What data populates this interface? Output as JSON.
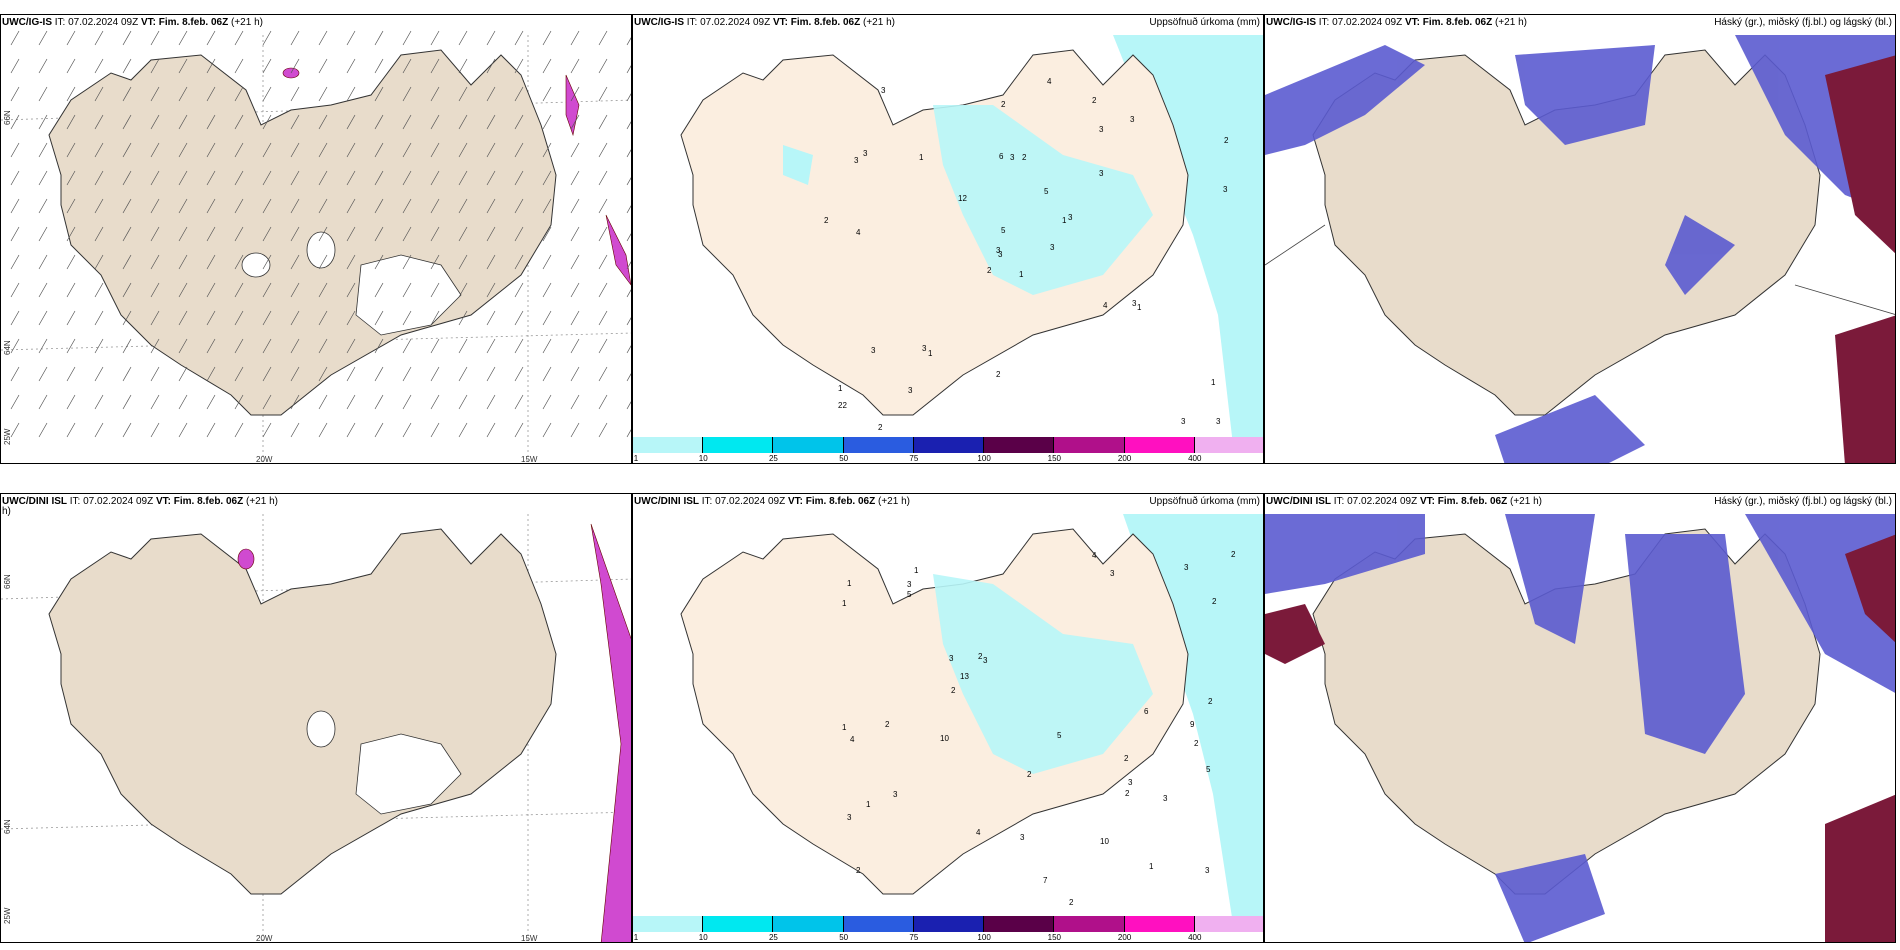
{
  "colors": {
    "land": "#e8dccb",
    "land_light": "#fbeee0",
    "precip_light": "#b7f6f8",
    "precip_mid": "#60e7ea",
    "cloud_high": "#5b5bd0",
    "cloud_mid": "#7fb0ee",
    "cloud_dark": "#7b1a3a",
    "pink": "#dd44dd"
  },
  "rows": [
    {
      "model_full": "UWC/IG-IS",
      "model_dini": "UWC/IG-IS",
      "panels": [
        {
          "title_model": "UWC/IG-IS",
          "title_it": "IT: 07.02.2024 09Z",
          "title_vt": "VT: Fim. 8.feb. 06Z",
          "title_plus": "(+21 h)",
          "right": ""
        },
        {
          "title_model": "UWC/IG-IS",
          "title_it": "IT: 07.02.2024 09Z",
          "title_vt": "VT: Fim. 8.feb. 06Z",
          "title_plus": "(+21 h)",
          "right": "Uppsöfnuð úrkoma (mm)"
        },
        {
          "title_model": "UWC/IG-IS",
          "title_it": "IT: 07.02.2024 09Z",
          "title_vt": "VT: Fim. 8.feb. 06Z",
          "title_plus": "(+21 h)",
          "right": "Háský (gr.), miðský (fj.bl.) og lágský (bl.)"
        }
      ]
    },
    {
      "panels": [
        {
          "title_model": "UWC/DINI ISL",
          "title_it": "IT: 07.02.2024 09Z",
          "title_vt": "VT: Fim. 8.feb. 06Z",
          "title_plus": "(+21 h)",
          "right": "",
          "wrap": "h)"
        },
        {
          "title_model": "UWC/DINI ISL",
          "title_it": "IT: 07.02.2024 09Z",
          "title_vt": "VT: Fim. 8.feb. 06Z",
          "title_plus": "(+21 h)",
          "right": "Uppsöfnuð úrkoma (mm)"
        },
        {
          "title_model": "UWC/DINI ISL",
          "title_it": "IT: 07.02.2024 09Z",
          "title_vt": "VT: Fim. 8.feb. 06Z",
          "title_plus": "(+21 h)",
          "right": "Háský (gr.), miðský (fj.bl.) og lágský (bl.)"
        }
      ]
    }
  ],
  "axes": {
    "lon_20": "20W",
    "lon_15": "15W",
    "lat_66": "66N",
    "lat_64": "64N",
    "lon_25": "25W"
  },
  "colorbar": {
    "labels": [
      "1",
      "10",
      "25",
      "50",
      "75",
      "100",
      "150",
      "200",
      "400"
    ],
    "colors": [
      "#b7f6f8",
      "#00e8f0",
      "#00c4ea",
      "#2a5ce0",
      "#1a20b0",
      "#5a0048",
      "#b0108a",
      "#ff10c0",
      "#f0b0f0"
    ]
  },
  "precip_top": [
    "1",
    "3",
    "3",
    "1",
    "1",
    "1",
    "2",
    "2",
    "3",
    "3",
    "3",
    "3",
    "4",
    "2",
    "2",
    "3",
    "2",
    "6",
    "5",
    "3",
    "12",
    "22",
    "3",
    "3",
    "3",
    "1",
    "3",
    "2",
    "2",
    "4",
    "3",
    "3",
    "2",
    "5",
    "1",
    "3",
    "3",
    "3",
    "1",
    "3",
    "4"
  ],
  "precip_bottom": [
    "2",
    "2",
    "2",
    "1",
    "3",
    "1",
    "3",
    "3",
    "3",
    "2",
    "1",
    "1",
    "1",
    "3",
    "4",
    "2",
    "2",
    "5",
    "2",
    "3",
    "2",
    "3",
    "2",
    "5",
    "4",
    "3",
    "3",
    "4",
    "5",
    "6",
    "7",
    "10",
    "13",
    "10",
    "9",
    "3",
    "2",
    "2",
    "3",
    "1",
    "2"
  ]
}
